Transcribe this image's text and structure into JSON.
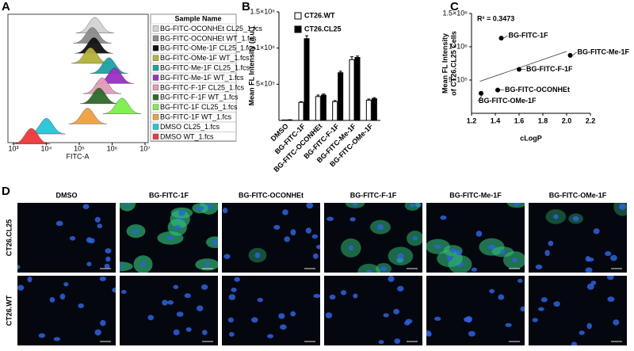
{
  "chart_data": [
    {
      "panel": "A",
      "type": "histogram-overlay",
      "xlabel": "FITC-A",
      "xscale": "log",
      "xlim": [
        1000,
        10000000
      ],
      "xticks": [
        {
          "value": 1000,
          "label": "10³"
        },
        {
          "value": 10000,
          "label": "10⁴"
        },
        {
          "value": 100000,
          "label": "10⁵"
        },
        {
          "value": 1000000,
          "label": "10⁶"
        },
        {
          "value": 10000000,
          "label": "10⁷"
        }
      ],
      "legend_title": "Sample Name",
      "series": [
        {
          "name": "BG-FITC-OCONHEt CL25_1.fcs",
          "color": "#d3d3d3",
          "peak": 300000
        },
        {
          "name": "BG-FITC-OCONHEt WT_1.fcs",
          "color": "#8c8c8c",
          "peak": 250000
        },
        {
          "name": "BG-FITC-OMe-1F CL25_1.fcs",
          "color": "#111111",
          "peak": 280000
        },
        {
          "name": "BG-FITC-OMe-1F WT_1.fcs",
          "color": "#b5b23a",
          "peak": 220000
        },
        {
          "name": "BG-FITC-Me-1F CL25_1.fcs",
          "color": "#1aa3a3",
          "peak": 800000
        },
        {
          "name": "BG-FITC-Me-1F WT_1.fcs",
          "color": "#9b2fc4",
          "peak": 1200000
        },
        {
          "name": "BG-FITC-F-1F CL25_1.fcs",
          "color": "#e39bb8",
          "peak": 500000
        },
        {
          "name": "BG-FITC-F-1F WT_1.fcs",
          "color": "#2e6b2a",
          "peak": 400000
        },
        {
          "name": "BG-FITC-1F CL25_1.fcs",
          "color": "#7cf04a",
          "peak": 2000000
        },
        {
          "name": "BG-FITC-1F WT_1.fcs",
          "color": "#f0a040",
          "peak": 180000
        },
        {
          "name": "DMSO CL25_1.fcs",
          "color": "#27c4d6",
          "peak": 10000
        },
        {
          "name": "DMSO WT_1.fcs",
          "color": "#f0383c",
          "peak": 3500
        }
      ]
    },
    {
      "panel": "B",
      "type": "bar",
      "ylabel": "Mean FL Intensity (a.u.)",
      "categories": [
        "DMSO",
        "BG-FITC-1F",
        "BG-FITC-OCONHEt",
        "BG-FITC-F-1F",
        "BG-FITC-Me-1F",
        "BG-FITC-OMe-1F"
      ],
      "ylim": [
        0,
        1500000
      ],
      "yticks": [
        {
          "value": 500000,
          "label": "5×10⁵"
        },
        {
          "value": 1000000,
          "label": "1×10⁶"
        },
        {
          "value": 1500000,
          "label": "1.5×10⁶"
        }
      ],
      "series": [
        {
          "name": "CT26.WT",
          "color": "#ffffff",
          "values": [
            5000,
            250000,
            330000,
            260000,
            840000,
            280000
          ],
          "errors": [
            2000,
            10000,
            20000,
            15000,
            40000,
            15000
          ]
        },
        {
          "name": "CT26.CL25",
          "color": "#000000",
          "values": [
            8000,
            1130000,
            350000,
            660000,
            870000,
            300000
          ],
          "errors": [
            2000,
            40000,
            15000,
            20000,
            20000,
            15000
          ]
        }
      ]
    },
    {
      "panel": "C",
      "type": "scatter",
      "xlabel": "cLogP",
      "ylabel": [
        "Mean FL Intensity",
        "of CT26.CL25 Cells"
      ],
      "annotation": "R² = 0.3473",
      "xlim": [
        1.2,
        2.2
      ],
      "xticks": [
        1.2,
        1.4,
        1.6,
        1.8,
        {
          "value": 2,
          "label": "2.0"
        },
        2.2
      ],
      "ylim": [
        0,
        1500000
      ],
      "yticks": [
        {
          "value": 500000,
          "label": "5×10⁵"
        },
        {
          "value": 1000000,
          "label": "1×10⁶"
        },
        {
          "value": 1500000,
          "label": "1.5×10⁶"
        }
      ],
      "labels": [
        "BG-FITC-1F",
        "BG-FITC-Me-1F",
        "BG-FITC-F-1F",
        "BG-FITC-OCONHEt",
        "BG-FITC-OMe-1F"
      ],
      "x": [
        1.45,
        2.03,
        1.6,
        1.42,
        1.28
      ],
      "values": [
        1130000,
        870000,
        660000,
        350000,
        300000
      ],
      "color": "#000000",
      "trendline": {
        "x": [
          1.27,
          2.0
        ],
        "y": [
          480000,
          930000
        ]
      }
    }
  ],
  "panel_d": {
    "panel": "D",
    "columns": [
      "DMSO",
      "BG-FITC-1F",
      "BG-FITC-OCONHEt",
      "BG-FITC-F-1F",
      "BG-FITC-Me-1F",
      "BG-FITC-OMe-1F"
    ],
    "rows": [
      "CT26.CL25",
      "CT26.WT"
    ]
  }
}
